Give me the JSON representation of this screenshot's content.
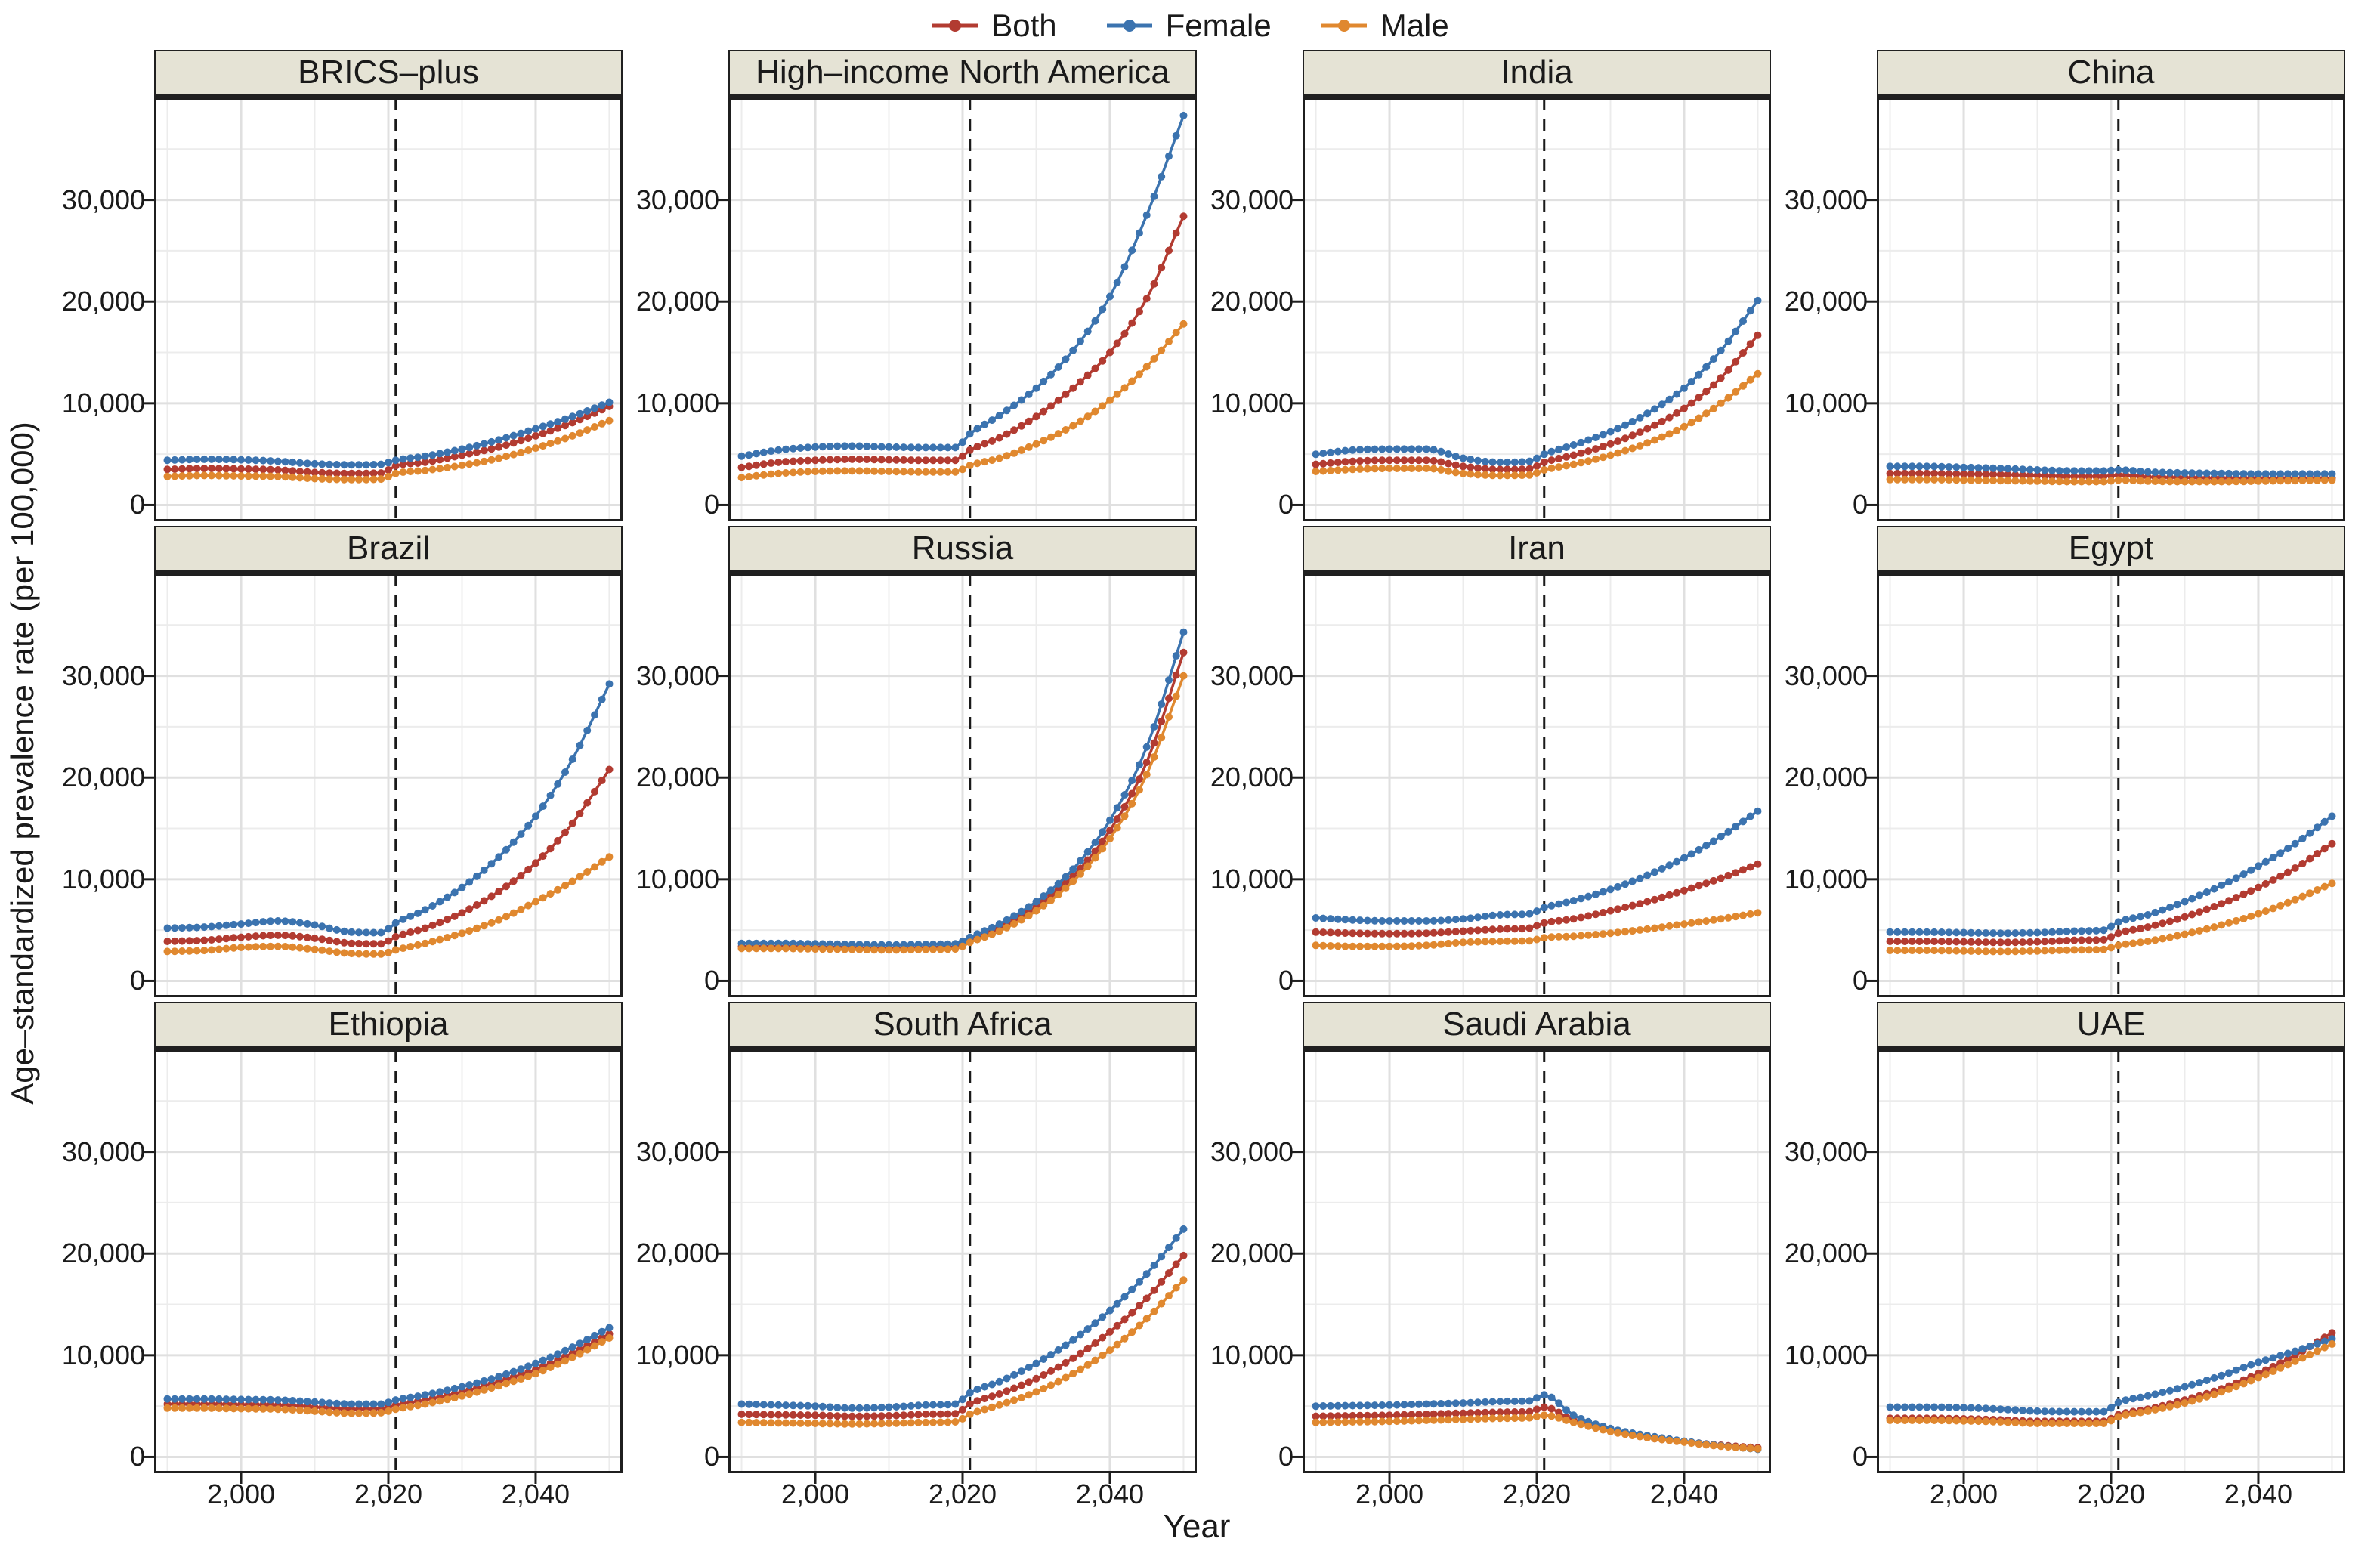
{
  "legend": {
    "items": [
      {
        "label": "Both",
        "color": "#b23b31"
      },
      {
        "label": "Female",
        "color": "#3b73af"
      },
      {
        "label": "Male",
        "color": "#e0882f"
      }
    ]
  },
  "axes": {
    "y_label": "Age–standardized prevalence rate (per 100,000)",
    "x_label": "Year",
    "y_ticks": [
      "30,000",
      "20,000",
      "10,000",
      "0"
    ],
    "y_tick_values": [
      30000,
      20000,
      10000,
      0
    ],
    "y_minor_values": [
      35000,
      25000,
      15000,
      5000
    ],
    "x_ticks": [
      "2,000",
      "2,020",
      "2,040"
    ],
    "x_tick_values": [
      2000,
      2020,
      2040
    ],
    "x_minor_values": [
      1990,
      2010,
      2030,
      2050
    ],
    "x_range": [
      1990,
      2050
    ],
    "y_range": [
      0,
      39000
    ],
    "forecast_divider_year": 2021,
    "panel_header_bg": "#e5e3d5",
    "grid_on": true,
    "legend_position": "top"
  },
  "chart_data": [
    {
      "title": "BRICS–plus",
      "type": "line",
      "x": [
        1990,
        1995,
        2000,
        2005,
        2010,
        2015,
        2019,
        2021,
        2025,
        2030,
        2035,
        2040,
        2045,
        2050
      ],
      "series": [
        {
          "name": "Both",
          "values": [
            3500,
            3600,
            3550,
            3450,
            3200,
            3100,
            3150,
            3850,
            4200,
            4900,
            5700,
            6800,
            8100,
            9700
          ]
        },
        {
          "name": "Female",
          "values": [
            4400,
            4500,
            4450,
            4300,
            4050,
            3950,
            4000,
            4400,
            4800,
            5500,
            6400,
            7500,
            8700,
            10100
          ]
        },
        {
          "name": "Male",
          "values": [
            2800,
            2900,
            2850,
            2800,
            2600,
            2500,
            2550,
            3100,
            3400,
            3900,
            4600,
            5600,
            6800,
            8300
          ]
        }
      ]
    },
    {
      "title": "High–income North America",
      "type": "line",
      "x": [
        1990,
        1995,
        2000,
        2005,
        2010,
        2015,
        2019,
        2021,
        2025,
        2030,
        2035,
        2040,
        2045,
        2050
      ],
      "series": [
        {
          "name": "Both",
          "values": [
            3700,
            4200,
            4400,
            4500,
            4450,
            4400,
            4400,
            5400,
            6600,
            8700,
            11500,
            15000,
            20300,
            28400
          ]
        },
        {
          "name": "Female",
          "values": [
            4800,
            5400,
            5700,
            5800,
            5700,
            5650,
            5650,
            7000,
            8800,
            11500,
            15200,
            20500,
            28500,
            38300
          ]
        },
        {
          "name": "Male",
          "values": [
            2700,
            3100,
            3300,
            3350,
            3300,
            3250,
            3250,
            3900,
            4600,
            6000,
            7800,
            10300,
            13600,
            17800
          ]
        }
      ]
    },
    {
      "title": "India",
      "type": "line",
      "x": [
        1990,
        1995,
        2000,
        2005,
        2010,
        2015,
        2019,
        2021,
        2025,
        2030,
        2035,
        2040,
        2045,
        2050
      ],
      "series": [
        {
          "name": "Both",
          "values": [
            4000,
            4300,
            4400,
            4400,
            3800,
            3500,
            3550,
            4200,
            4900,
            6000,
            7500,
            9500,
            12500,
            16700
          ]
        },
        {
          "name": "Female",
          "values": [
            5000,
            5400,
            5500,
            5500,
            4600,
            4200,
            4300,
            5000,
            5900,
            7200,
            9000,
            11500,
            15200,
            20100
          ]
        },
        {
          "name": "Male",
          "values": [
            3300,
            3500,
            3600,
            3600,
            3100,
            2900,
            2950,
            3450,
            4000,
            4900,
            6100,
            7700,
            10000,
            12900
          ]
        }
      ]
    },
    {
      "title": "China",
      "type": "line",
      "x": [
        1990,
        1995,
        2000,
        2005,
        2010,
        2015,
        2019,
        2021,
        2025,
        2030,
        2035,
        2040,
        2045,
        2050
      ],
      "series": [
        {
          "name": "Both",
          "values": [
            3100,
            3100,
            3050,
            3000,
            2900,
            2800,
            2800,
            2950,
            2750,
            2700,
            2650,
            2650,
            2650,
            2650
          ]
        },
        {
          "name": "Female",
          "values": [
            3800,
            3800,
            3700,
            3600,
            3450,
            3350,
            3350,
            3450,
            3250,
            3150,
            3100,
            3050,
            3050,
            3050
          ]
        },
        {
          "name": "Male",
          "values": [
            2500,
            2500,
            2450,
            2400,
            2350,
            2300,
            2300,
            2450,
            2350,
            2300,
            2300,
            2350,
            2400,
            2450
          ]
        }
      ]
    },
    {
      "title": "Brazil",
      "type": "line",
      "x": [
        1990,
        1995,
        2000,
        2005,
        2010,
        2015,
        2019,
        2021,
        2025,
        2030,
        2035,
        2040,
        2045,
        2050
      ],
      "series": [
        {
          "name": "Both",
          "values": [
            3900,
            4000,
            4300,
            4500,
            4200,
            3700,
            3650,
            4350,
            5200,
            6700,
            8800,
            11600,
            15500,
            20800
          ]
        },
        {
          "name": "Female",
          "values": [
            5200,
            5300,
            5600,
            5900,
            5500,
            4800,
            4750,
            5700,
            7000,
            9200,
            12200,
            16200,
            21800,
            29200
          ]
        },
        {
          "name": "Male",
          "values": [
            2900,
            3000,
            3300,
            3400,
            3100,
            2700,
            2650,
            3050,
            3700,
            4700,
            6000,
            7800,
            9800,
            12200
          ]
        }
      ]
    },
    {
      "title": "Russia",
      "type": "line",
      "x": [
        1990,
        1995,
        2000,
        2005,
        2010,
        2015,
        2019,
        2021,
        2025,
        2030,
        2035,
        2040,
        2045,
        2050
      ],
      "series": [
        {
          "name": "Both",
          "values": [
            3400,
            3400,
            3350,
            3300,
            3250,
            3300,
            3350,
            4000,
            5200,
            7300,
            10300,
            14800,
            21500,
            32300
          ]
        },
        {
          "name": "Female",
          "values": [
            3700,
            3700,
            3650,
            3600,
            3550,
            3600,
            3650,
            4300,
            5600,
            7800,
            11000,
            15800,
            23000,
            34300
          ]
        },
        {
          "name": "Male",
          "values": [
            3200,
            3200,
            3150,
            3100,
            3050,
            3100,
            3150,
            3800,
            4900,
            6900,
            9800,
            14000,
            20300,
            30000
          ]
        }
      ]
    },
    {
      "title": "Iran",
      "type": "line",
      "x": [
        1990,
        1995,
        2000,
        2005,
        2010,
        2015,
        2019,
        2021,
        2025,
        2030,
        2035,
        2040,
        2045,
        2050
      ],
      "series": [
        {
          "name": "Both",
          "values": [
            4800,
            4700,
            4650,
            4700,
            4900,
            5100,
            5200,
            5700,
            6100,
            6900,
            7800,
            8900,
            10100,
            11500
          ]
        },
        {
          "name": "Female",
          "values": [
            6200,
            6000,
            5900,
            5900,
            6100,
            6500,
            6600,
            7200,
            7900,
            9000,
            10400,
            12100,
            14200,
            16700
          ]
        },
        {
          "name": "Male",
          "values": [
            3500,
            3400,
            3400,
            3500,
            3800,
            3900,
            3950,
            4250,
            4400,
            4700,
            5100,
            5600,
            6100,
            6700
          ]
        }
      ]
    },
    {
      "title": "Egypt",
      "type": "line",
      "x": [
        1990,
        1995,
        2000,
        2005,
        2010,
        2015,
        2019,
        2021,
        2025,
        2030,
        2035,
        2040,
        2045,
        2050
      ],
      "series": [
        {
          "name": "Both",
          "values": [
            3900,
            3900,
            3850,
            3800,
            3850,
            4000,
            4050,
            4700,
            5300,
            6300,
            7600,
            9200,
            11100,
            13500
          ]
        },
        {
          "name": "Female",
          "values": [
            4800,
            4800,
            4750,
            4700,
            4750,
            4900,
            5000,
            5800,
            6500,
            7800,
            9400,
            11300,
            13500,
            16200
          ]
        },
        {
          "name": "Male",
          "values": [
            3000,
            3000,
            2950,
            2900,
            2950,
            3050,
            3100,
            3500,
            3900,
            4600,
            5500,
            6600,
            8000,
            9600
          ]
        }
      ]
    },
    {
      "title": "Ethiopia",
      "type": "line",
      "x": [
        1990,
        1995,
        2000,
        2005,
        2010,
        2015,
        2019,
        2021,
        2025,
        2030,
        2035,
        2040,
        2045,
        2050
      ],
      "series": [
        {
          "name": "Both",
          "values": [
            5200,
            5200,
            5150,
            5100,
            4900,
            4700,
            4750,
            5100,
            5600,
            6400,
            7400,
            8600,
            10200,
            12100
          ]
        },
        {
          "name": "Female",
          "values": [
            5700,
            5700,
            5650,
            5600,
            5400,
            5200,
            5200,
            5600,
            6100,
            6900,
            7900,
            9200,
            10800,
            12700
          ]
        },
        {
          "name": "Male",
          "values": [
            4800,
            4800,
            4750,
            4700,
            4500,
            4300,
            4350,
            4700,
            5200,
            6000,
            7000,
            8200,
            9800,
            11700
          ]
        }
      ]
    },
    {
      "title": "South Africa",
      "type": "line",
      "x": [
        1990,
        1995,
        2000,
        2005,
        2010,
        2015,
        2019,
        2021,
        2025,
        2030,
        2035,
        2040,
        2045,
        2050
      ],
      "series": [
        {
          "name": "Both",
          "values": [
            4200,
            4150,
            4100,
            4000,
            4050,
            4200,
            4250,
            5200,
            6200,
            7700,
            9700,
            12300,
            15600,
            19800
          ]
        },
        {
          "name": "Female",
          "values": [
            5200,
            5100,
            5000,
            4800,
            4900,
            5100,
            5200,
            6300,
            7400,
            9200,
            11500,
            14400,
            18000,
            22400
          ]
        },
        {
          "name": "Male",
          "values": [
            3400,
            3350,
            3300,
            3250,
            3300,
            3400,
            3450,
            4200,
            5100,
            6400,
            8200,
            10500,
            13600,
            17400
          ]
        }
      ]
    },
    {
      "title": "Saudi Arabia",
      "type": "line",
      "x": [
        1990,
        1995,
        2000,
        2005,
        2010,
        2015,
        2019,
        2021,
        2025,
        2030,
        2035,
        2040,
        2045,
        2050
      ],
      "series": [
        {
          "name": "Both",
          "values": [
            4000,
            4050,
            4100,
            4200,
            4300,
            4400,
            4450,
            4900,
            3600,
            2600,
            1900,
            1500,
            1150,
            900
          ]
        },
        {
          "name": "Female",
          "values": [
            5000,
            5050,
            5100,
            5200,
            5300,
            5450,
            5500,
            6100,
            4100,
            2800,
            2100,
            1550,
            1100,
            750
          ]
        },
        {
          "name": "Male",
          "values": [
            3400,
            3450,
            3500,
            3600,
            3700,
            3800,
            3850,
            4100,
            3400,
            2500,
            1900,
            1450,
            1050,
            800
          ]
        }
      ]
    },
    {
      "title": "UAE",
      "type": "line",
      "x": [
        1990,
        1995,
        2000,
        2005,
        2010,
        2015,
        2019,
        2021,
        2025,
        2030,
        2035,
        2040,
        2045,
        2050
      ],
      "series": [
        {
          "name": "Both",
          "values": [
            3800,
            3800,
            3750,
            3650,
            3500,
            3500,
            3500,
            4150,
            4700,
            5600,
            6700,
            8200,
            10000,
            12200
          ]
        },
        {
          "name": "Female",
          "values": [
            4900,
            4900,
            4850,
            4700,
            4500,
            4450,
            4450,
            5350,
            6000,
            6900,
            8000,
            9300,
            10400,
            11600
          ]
        },
        {
          "name": "Male",
          "values": [
            3600,
            3600,
            3550,
            3450,
            3300,
            3300,
            3300,
            3950,
            4500,
            5300,
            6400,
            7800,
            9400,
            11100
          ]
        }
      ]
    }
  ]
}
